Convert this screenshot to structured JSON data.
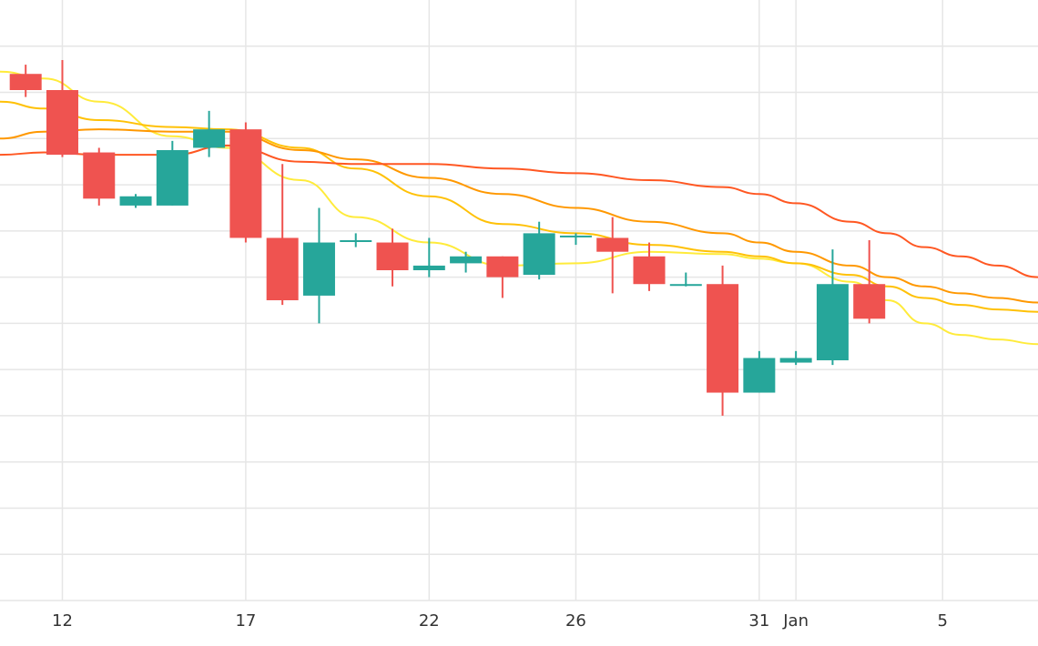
{
  "chart_data": {
    "type": "candlestick",
    "title": "",
    "xlabel": "",
    "ylabel": "",
    "x_ticks": [
      {
        "day": 12,
        "label": "12"
      },
      {
        "day": 17,
        "label": "17"
      },
      {
        "day": 22,
        "label": "22"
      },
      {
        "day": 26,
        "label": "26"
      },
      {
        "day": 31,
        "label": "31"
      },
      {
        "day": 32,
        "label": "Jan"
      },
      {
        "day": 36,
        "label": "5"
      }
    ],
    "x_range": [
      10.3,
      38.6
    ],
    "y_range": [
      0,
      13
    ],
    "y_gridlines": [
      1,
      2,
      3,
      4,
      5,
      6,
      7,
      8,
      9,
      10,
      11,
      12
    ],
    "grid": true,
    "colors": {
      "increasing": "#26a69a",
      "decreasing": "#ef5350",
      "grid": "#e6e6e6",
      "ma_lines": [
        "#ffeb3b",
        "#ffc107",
        "#ff9800",
        "#ff5722"
      ]
    },
    "candles": [
      {
        "day": 11,
        "open": 11.4,
        "high": 11.6,
        "low": 10.9,
        "close": 11.05
      },
      {
        "day": 12,
        "open": 11.05,
        "high": 11.7,
        "low": 9.6,
        "close": 9.65
      },
      {
        "day": 13,
        "open": 9.7,
        "high": 9.8,
        "low": 8.55,
        "close": 8.7
      },
      {
        "day": 14,
        "open": 8.55,
        "high": 8.8,
        "low": 8.5,
        "close": 8.75
      },
      {
        "day": 15,
        "open": 8.55,
        "high": 9.95,
        "low": 8.55,
        "close": 9.75
      },
      {
        "day": 16,
        "open": 9.8,
        "high": 10.6,
        "low": 9.6,
        "close": 10.2
      },
      {
        "day": 17,
        "open": 10.2,
        "high": 10.35,
        "low": 7.75,
        "close": 7.85
      },
      {
        "day": 18,
        "open": 7.85,
        "high": 9.45,
        "low": 6.4,
        "close": 6.5
      },
      {
        "day": 19,
        "open": 6.6,
        "high": 8.5,
        "low": 6.0,
        "close": 7.75
      },
      {
        "day": 20,
        "open": 7.8,
        "high": 7.95,
        "low": 7.65,
        "close": 7.8
      },
      {
        "day": 21,
        "open": 7.75,
        "high": 8.05,
        "low": 6.8,
        "close": 7.15
      },
      {
        "day": 22,
        "open": 7.15,
        "high": 7.85,
        "low": 7.0,
        "close": 7.25
      },
      {
        "day": 23,
        "open": 7.3,
        "high": 7.55,
        "low": 7.1,
        "close": 7.45
      },
      {
        "day": 24,
        "open": 7.45,
        "high": 7.45,
        "low": 6.55,
        "close": 7.0
      },
      {
        "day": 25,
        "open": 7.05,
        "high": 8.2,
        "low": 6.95,
        "close": 7.95
      },
      {
        "day": 26,
        "open": 7.9,
        "high": 7.95,
        "low": 7.7,
        "close": 7.9
      },
      {
        "day": 27,
        "open": 7.85,
        "high": 8.3,
        "low": 6.65,
        "close": 7.55
      },
      {
        "day": 28,
        "open": 7.45,
        "high": 7.75,
        "low": 6.7,
        "close": 6.85
      },
      {
        "day": 29,
        "open": 6.85,
        "high": 7.1,
        "low": 6.8,
        "close": 6.85
      },
      {
        "day": 30,
        "open": 6.85,
        "high": 7.25,
        "low": 4.0,
        "close": 4.5
      },
      {
        "day": 31,
        "open": 4.5,
        "high": 5.4,
        "low": 4.5,
        "close": 5.25
      },
      {
        "day": 32,
        "open": 5.15,
        "high": 5.4,
        "low": 5.1,
        "close": 5.25
      },
      {
        "day": 33,
        "open": 5.2,
        "high": 7.6,
        "low": 5.1,
        "close": 6.85
      },
      {
        "day": 34,
        "open": 6.85,
        "high": 7.8,
        "low": 6.0,
        "close": 6.1
      }
    ],
    "moving_averages": [
      {
        "color": "#ffeb3b",
        "x": [
          10.3,
          11.5,
          13,
          15,
          16.5,
          18.5,
          20,
          22,
          24,
          26,
          28,
          30,
          31,
          32,
          33.5,
          34.5,
          35.5,
          36.5,
          37.5,
          38.6
        ],
        "y": [
          11.45,
          11.3,
          10.8,
          10.05,
          9.8,
          9.1,
          8.3,
          7.75,
          7.25,
          7.3,
          7.55,
          7.5,
          7.4,
          7.3,
          6.9,
          6.5,
          6.0,
          5.75,
          5.65,
          5.55
        ]
      },
      {
        "color": "#ffc107",
        "x": [
          10.3,
          11.5,
          13,
          15,
          16.5,
          18.5,
          20,
          22,
          24,
          26,
          28,
          30,
          31,
          32,
          33.5,
          34.5,
          35.5,
          36.5,
          37.5,
          38.6
        ],
        "y": [
          10.8,
          10.65,
          10.4,
          10.25,
          10.2,
          9.8,
          9.35,
          8.75,
          8.15,
          7.95,
          7.7,
          7.55,
          7.45,
          7.3,
          7.05,
          6.8,
          6.55,
          6.4,
          6.3,
          6.25
        ]
      },
      {
        "color": "#ff9800",
        "x": [
          10.3,
          11.5,
          13,
          15,
          16.5,
          18.5,
          20,
          22,
          24,
          26,
          28,
          30,
          31,
          32,
          33.5,
          34.5,
          35.5,
          36.5,
          37.5,
          38.6
        ],
        "y": [
          10.0,
          10.15,
          10.2,
          10.15,
          10.15,
          9.75,
          9.55,
          9.15,
          8.8,
          8.5,
          8.2,
          7.95,
          7.75,
          7.55,
          7.25,
          7.0,
          6.8,
          6.65,
          6.55,
          6.45
        ]
      },
      {
        "color": "#ff5722",
        "x": [
          10.3,
          11.5,
          13,
          15,
          16.5,
          18.5,
          20,
          22,
          24,
          26,
          28,
          30,
          31,
          32,
          33.5,
          34.5,
          35.5,
          36.5,
          37.5,
          38.6
        ],
        "y": [
          9.65,
          9.7,
          9.65,
          9.65,
          9.85,
          9.5,
          9.45,
          9.45,
          9.35,
          9.25,
          9.1,
          8.95,
          8.8,
          8.6,
          8.2,
          7.95,
          7.65,
          7.45,
          7.25,
          7.0
        ]
      }
    ]
  }
}
